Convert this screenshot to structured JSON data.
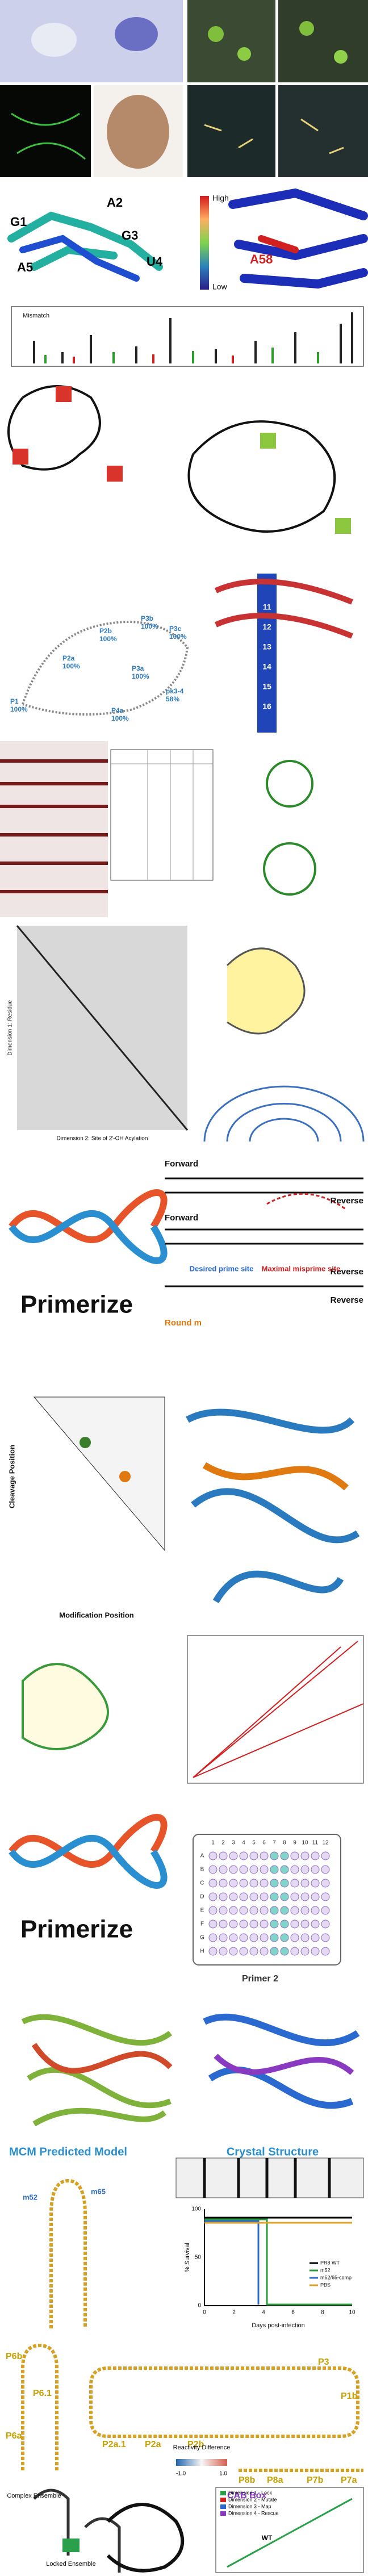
{
  "structure": {
    "labels": [
      "G1",
      "A2",
      "G3",
      "A5",
      "U4"
    ],
    "high": "High",
    "low": "Low",
    "highlight": "A58"
  },
  "mismatch": {
    "label": "Mismatch"
  },
  "rna_percent": {
    "labels": [
      "P2b",
      "100%",
      "P3b",
      "100%",
      "P3c",
      "100%",
      "P2a",
      "100%",
      "P3a",
      "100%",
      "P1",
      "100%",
      "P4a",
      "100%",
      "pk3-4",
      "58%"
    ]
  },
  "spine": {
    "labels": [
      "11",
      "12",
      "13",
      "14",
      "15",
      "16"
    ]
  },
  "mohca": {
    "y_label": "Dimension 1: Residue",
    "x_label": "Dimension 2: Site of 2'-OH Acylation"
  },
  "primerize": {
    "logo": "Primerize",
    "forward_1": "Forward",
    "reverse_1": "Reverse",
    "forward_2": "Forward",
    "reverse_2": "Reverse",
    "desired": "Desired prime site",
    "misprime": "Maximal misprime site",
    "round": "Round m",
    "reverse_3": "Reverse"
  },
  "cleavage": {
    "y_label": "Cleavage Position",
    "x_label": "Modification Position"
  },
  "primerize_plate": {
    "logo": "Primerize",
    "plate_label": "Primer 2",
    "columns": [
      "1",
      "2",
      "3",
      "4",
      "5",
      "6",
      "7",
      "8",
      "9",
      "10",
      "11",
      "12"
    ],
    "rows": [
      "A",
      "B",
      "C",
      "D",
      "E",
      "F",
      "G",
      "H"
    ]
  },
  "mcm": {
    "left_title": "MCM Predicted Model",
    "right_title": "Crystal Structure",
    "labels": [
      "m52",
      "m65"
    ]
  },
  "survival": {
    "y_label": "% Survival",
    "x_label": "Days post-infection",
    "yticks": [
      "0",
      "50",
      "100"
    ],
    "xticks": [
      "0",
      "2",
      "4",
      "6",
      "8",
      "10"
    ],
    "legend": [
      "PR8 WT",
      "m52",
      "m52/65-comp",
      "PBS"
    ]
  },
  "helices": {
    "labels": [
      "P6b",
      "P6.1",
      "P6a",
      "P3",
      "P1b",
      "P2a.1",
      "P2a",
      "P2b",
      "P8b",
      "P8a",
      "P7b",
      "P7a",
      "CAB Box"
    ]
  },
  "reactivity": {
    "title": "Reactivity Difference",
    "ticks": [
      "-1.0",
      "1.0"
    ]
  },
  "ensemble": {
    "complex": "Complex Ensemble",
    "locked": "Locked Ensemble",
    "legend": [
      "Dimension 1 - Lock",
      "Dimension 2 - Mutate",
      "Dimension 3 - Map",
      "Dimension 4 - Rescue"
    ],
    "wt": "WT"
  }
}
